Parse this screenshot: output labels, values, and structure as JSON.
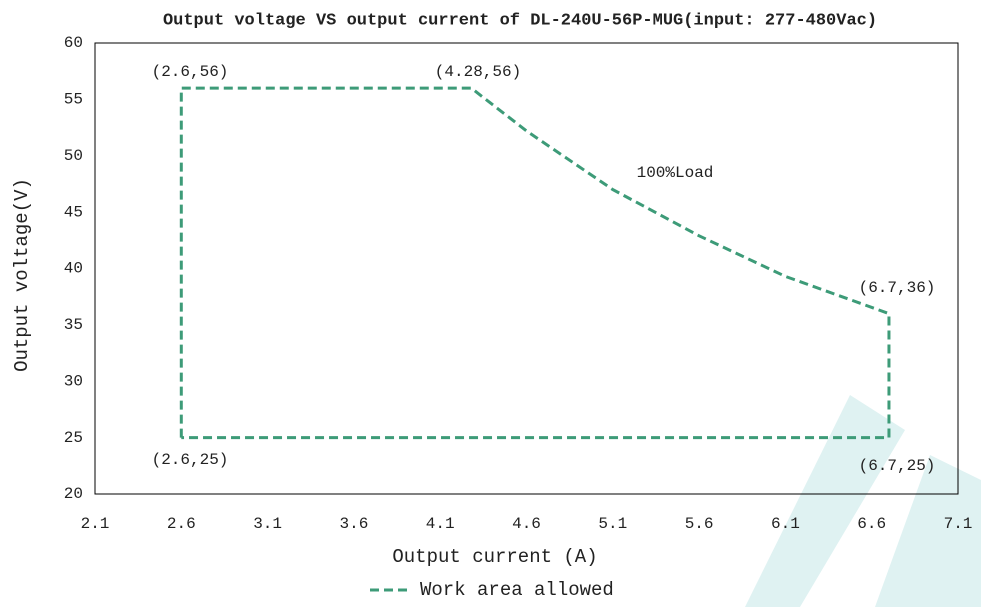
{
  "chart_data": {
    "type": "line",
    "title": "Output voltage VS output current of DL-240U-56P-MUG(input: 277-480Vac)",
    "x_label": "Output current (A)",
    "y_label": "Output voltage(V)",
    "x": [
      2.6,
      2.6,
      4.28,
      4.6,
      5.1,
      5.6,
      6.1,
      6.7,
      6.7,
      2.6
    ],
    "series": [
      {
        "name": "Work area allowed",
        "color": "#3d9b78",
        "dashed": true,
        "values": [
          25,
          56,
          56,
          52.2,
          47,
          42.9,
          39.3,
          36,
          25,
          25
        ]
      }
    ],
    "xlim": [
      2.1,
      7.1
    ],
    "xticks": [
      2.1,
      2.6,
      3.1,
      3.6,
      4.1,
      4.6,
      5.1,
      5.6,
      6.1,
      6.6,
      7.1
    ],
    "ylim": [
      20,
      60
    ],
    "yticks": [
      20,
      25,
      30,
      35,
      40,
      45,
      50,
      55,
      60
    ],
    "grid": false,
    "legend": "bottom",
    "annotations": [
      "(2.6,56)",
      "(4.28,56)",
      "100%Load",
      "(6.7,36)",
      "(2.6,25)",
      "(6.7,25)"
    ]
  }
}
